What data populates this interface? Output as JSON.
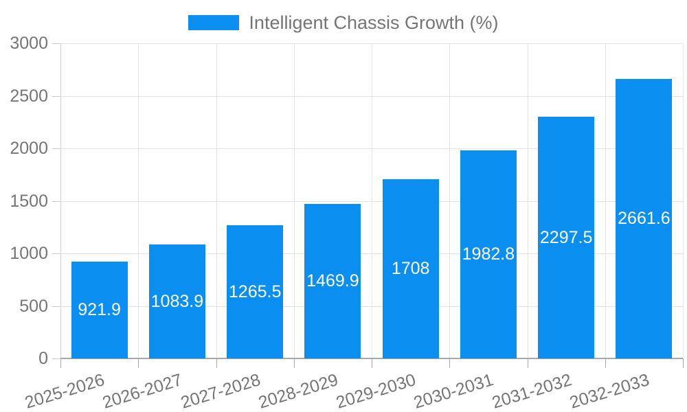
{
  "legend": {
    "label": "Intelligent Chassis Growth (%)"
  },
  "chart_data": {
    "type": "bar",
    "title": "",
    "categories": [
      "2025-2026",
      "2026-2027",
      "2027-2028",
      "2028-2029",
      "2029-2030",
      "2030-2031",
      "2031-2032",
      "2032-2033"
    ],
    "series": [
      {
        "name": "Intelligent Chassis Growth (%)",
        "values": [
          921.9,
          1083.9,
          1265.5,
          1469.9,
          1708,
          1982.8,
          2297.5,
          2661.6
        ]
      }
    ],
    "value_labels": [
      "921.9",
      "1083.9",
      "1265.5",
      "1469.9",
      "1708",
      "1982.8",
      "2297.5",
      "2661.6"
    ],
    "xlabel": "",
    "ylabel": "",
    "ylim": [
      0,
      3000
    ],
    "y_ticks": [
      0,
      500,
      1000,
      1500,
      2000,
      2500,
      3000
    ],
    "grid": true,
    "legend_position": "top-center",
    "value_label_position": "inside-center",
    "x_label_rotation_deg": -17,
    "colors": {
      "bar": "#0a8ff0",
      "axis_text": "#757575",
      "value_label_text": "#ffffff",
      "gridline": "#e4e4e4",
      "axis_line": "#a8a8a8",
      "background": "#ffffff"
    }
  }
}
